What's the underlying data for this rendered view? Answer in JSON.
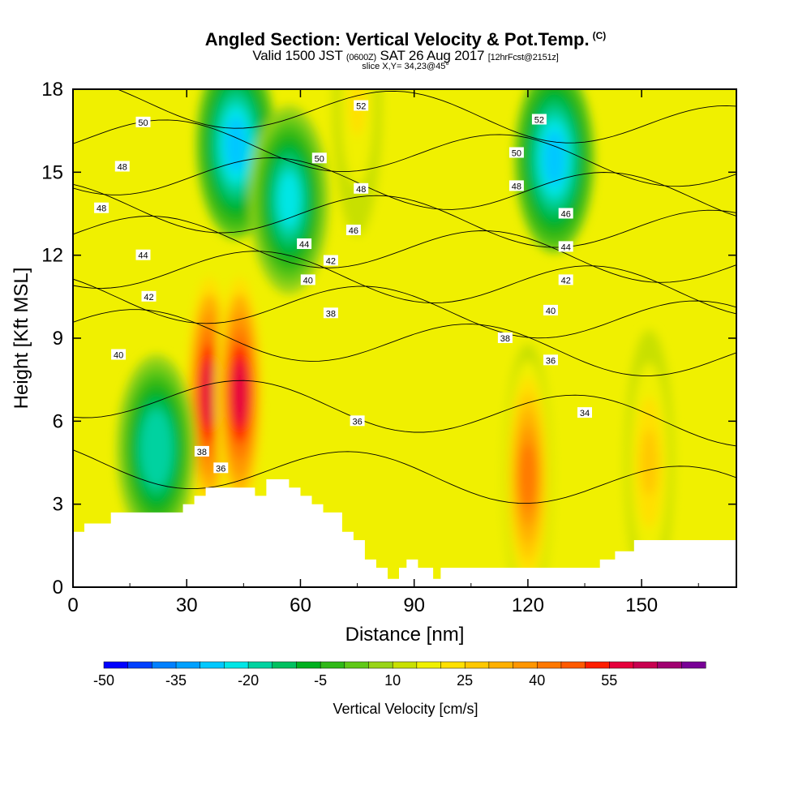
{
  "chart_data": {
    "type": "heatmap",
    "title": "Angled Section: Vertical Velocity & Pot.Temp.",
    "title_unit": "(C)",
    "subtitle_prefix": "Valid 1500 JST",
    "subtitle_utc": "(0600Z)",
    "subtitle_date": "SAT 26 Aug 2017",
    "subtitle_fcst": "[12hrFcst@2151z]",
    "slice_label": "slice X,Y= 34,23@45°",
    "xlabel": "Distance [nm]",
    "ylabel": "Height [Kft MSL]",
    "xlim": [
      0,
      175
    ],
    "ylim": [
      0,
      18
    ],
    "xticks": [
      0,
      30,
      60,
      90,
      120,
      150
    ],
    "xtick_labels": [
      "0",
      "30",
      "60",
      "90",
      "120",
      "150"
    ],
    "yticks": [
      0,
      3,
      6,
      9,
      12,
      15,
      18
    ],
    "ytick_labels": [
      "0",
      "3",
      "6",
      "9",
      "12",
      "15",
      "18"
    ],
    "colorbar": {
      "label": "Vertical Velocity [cm/s]",
      "levels_from": -50,
      "levels_step": 5,
      "tick_values": [
        -50,
        -35,
        -20,
        -5,
        10,
        25,
        40,
        55
      ],
      "tick_labels": [
        "-50",
        "-35",
        "-20",
        "-5",
        "10",
        "25",
        "40",
        "55"
      ],
      "colors": [
        "#0000ff",
        "#0040ff",
        "#0080ff",
        "#00a0ff",
        "#00c8ff",
        "#00e6e6",
        "#00d2a0",
        "#00c060",
        "#00b020",
        "#30b818",
        "#60c818",
        "#98d418",
        "#c8e000",
        "#f0f000",
        "#ffe000",
        "#ffc800",
        "#ffb000",
        "#ff9600",
        "#ff7800",
        "#ff5a00",
        "#ff1e00",
        "#e6003c",
        "#c80050",
        "#a00070",
        "#780096"
      ]
    },
    "potential_temperature_contours": {
      "unit": "C",
      "levels": [
        34,
        36,
        38,
        40,
        42,
        44,
        46,
        48,
        50,
        52
      ],
      "labels": [
        {
          "value": 50,
          "x": 18.5,
          "y": 16.8
        },
        {
          "value": 48,
          "x": 13,
          "y": 15.2
        },
        {
          "value": 48,
          "x": 7.5,
          "y": 13.7
        },
        {
          "value": 44,
          "x": 18.5,
          "y": 12.0
        },
        {
          "value": 42,
          "x": 20,
          "y": 10.5
        },
        {
          "value": 40,
          "x": 12,
          "y": 8.4
        },
        {
          "value": 38,
          "x": 34,
          "y": 4.9
        },
        {
          "value": 36,
          "x": 39,
          "y": 4.3
        },
        {
          "value": 52,
          "x": 76,
          "y": 17.4
        },
        {
          "value": 50,
          "x": 65,
          "y": 15.5
        },
        {
          "value": 48,
          "x": 76,
          "y": 14.4
        },
        {
          "value": 46,
          "x": 74,
          "y": 12.9
        },
        {
          "value": 44,
          "x": 61,
          "y": 12.4
        },
        {
          "value": 42,
          "x": 68,
          "y": 11.8
        },
        {
          "value": 40,
          "x": 62,
          "y": 11.1
        },
        {
          "value": 38,
          "x": 68,
          "y": 9.9
        },
        {
          "value": 36,
          "x": 75,
          "y": 6.0
        },
        {
          "value": 52,
          "x": 123,
          "y": 16.9
        },
        {
          "value": 50,
          "x": 117,
          "y": 15.7
        },
        {
          "value": 48,
          "x": 117,
          "y": 14.5
        },
        {
          "value": 46,
          "x": 130,
          "y": 13.5
        },
        {
          "value": 44,
          "x": 130,
          "y": 12.3
        },
        {
          "value": 42,
          "x": 130,
          "y": 11.1
        },
        {
          "value": 40,
          "x": 126,
          "y": 10.0
        },
        {
          "value": 38,
          "x": 114,
          "y": 9.0
        },
        {
          "value": 36,
          "x": 126,
          "y": 8.2
        },
        {
          "value": 34,
          "x": 135,
          "y": 6.3
        }
      ]
    },
    "terrain_profile": {
      "x": [
        0,
        3,
        3,
        10,
        10,
        29,
        29,
        32,
        32,
        35,
        35,
        48,
        48,
        51,
        51,
        57,
        57,
        60,
        60,
        63,
        63,
        66,
        66,
        71,
        71,
        74,
        74,
        77,
        77,
        80,
        80,
        83,
        83,
        86,
        86,
        88,
        88,
        91,
        91,
        95,
        95,
        97,
        97,
        127,
        127,
        139,
        139,
        143,
        143,
        148,
        148,
        152,
        152,
        159,
        159,
        175
      ],
      "y": [
        2.0,
        2.0,
        2.3,
        2.3,
        2.7,
        2.7,
        3.0,
        3.0,
        3.3,
        3.3,
        3.6,
        3.6,
        3.3,
        3.3,
        3.9,
        3.9,
        3.6,
        3.6,
        3.3,
        3.3,
        3.0,
        3.0,
        2.7,
        2.7,
        2.0,
        2.0,
        1.7,
        1.7,
        1.0,
        1.0,
        0.7,
        0.7,
        0.3,
        0.3,
        0.7,
        0.7,
        1.0,
        1.0,
        0.7,
        0.7,
        0.3,
        0.3,
        0.7,
        0.7,
        0.7,
        0.7,
        1.0,
        1.0,
        1.3,
        1.3,
        1.7,
        1.7,
        1.7,
        1.7,
        1.7,
        1.7
      ]
    },
    "vertical_velocity_features": [
      {
        "kind": "updraft",
        "x": 36,
        "y": 7.0,
        "peak": 58
      },
      {
        "kind": "updraft",
        "x": 44,
        "y": 7.0,
        "peak": 58
      },
      {
        "kind": "updraft",
        "x": 120,
        "y": 4.0,
        "peak": 40
      },
      {
        "kind": "updraft",
        "x": 152,
        "y": 4.5,
        "peak": 25
      },
      {
        "kind": "updraft",
        "x": 75,
        "y": 17.5,
        "peak": 20
      },
      {
        "kind": "downdraft",
        "x": 43,
        "y": 16.0,
        "peak": -30
      },
      {
        "kind": "downdraft",
        "x": 127,
        "y": 15.5,
        "peak": -30
      },
      {
        "kind": "downdraft",
        "x": 57,
        "y": 14.0,
        "peak": -22
      },
      {
        "kind": "downdraft",
        "x": 22,
        "y": 5.0,
        "peak": -20
      }
    ]
  }
}
